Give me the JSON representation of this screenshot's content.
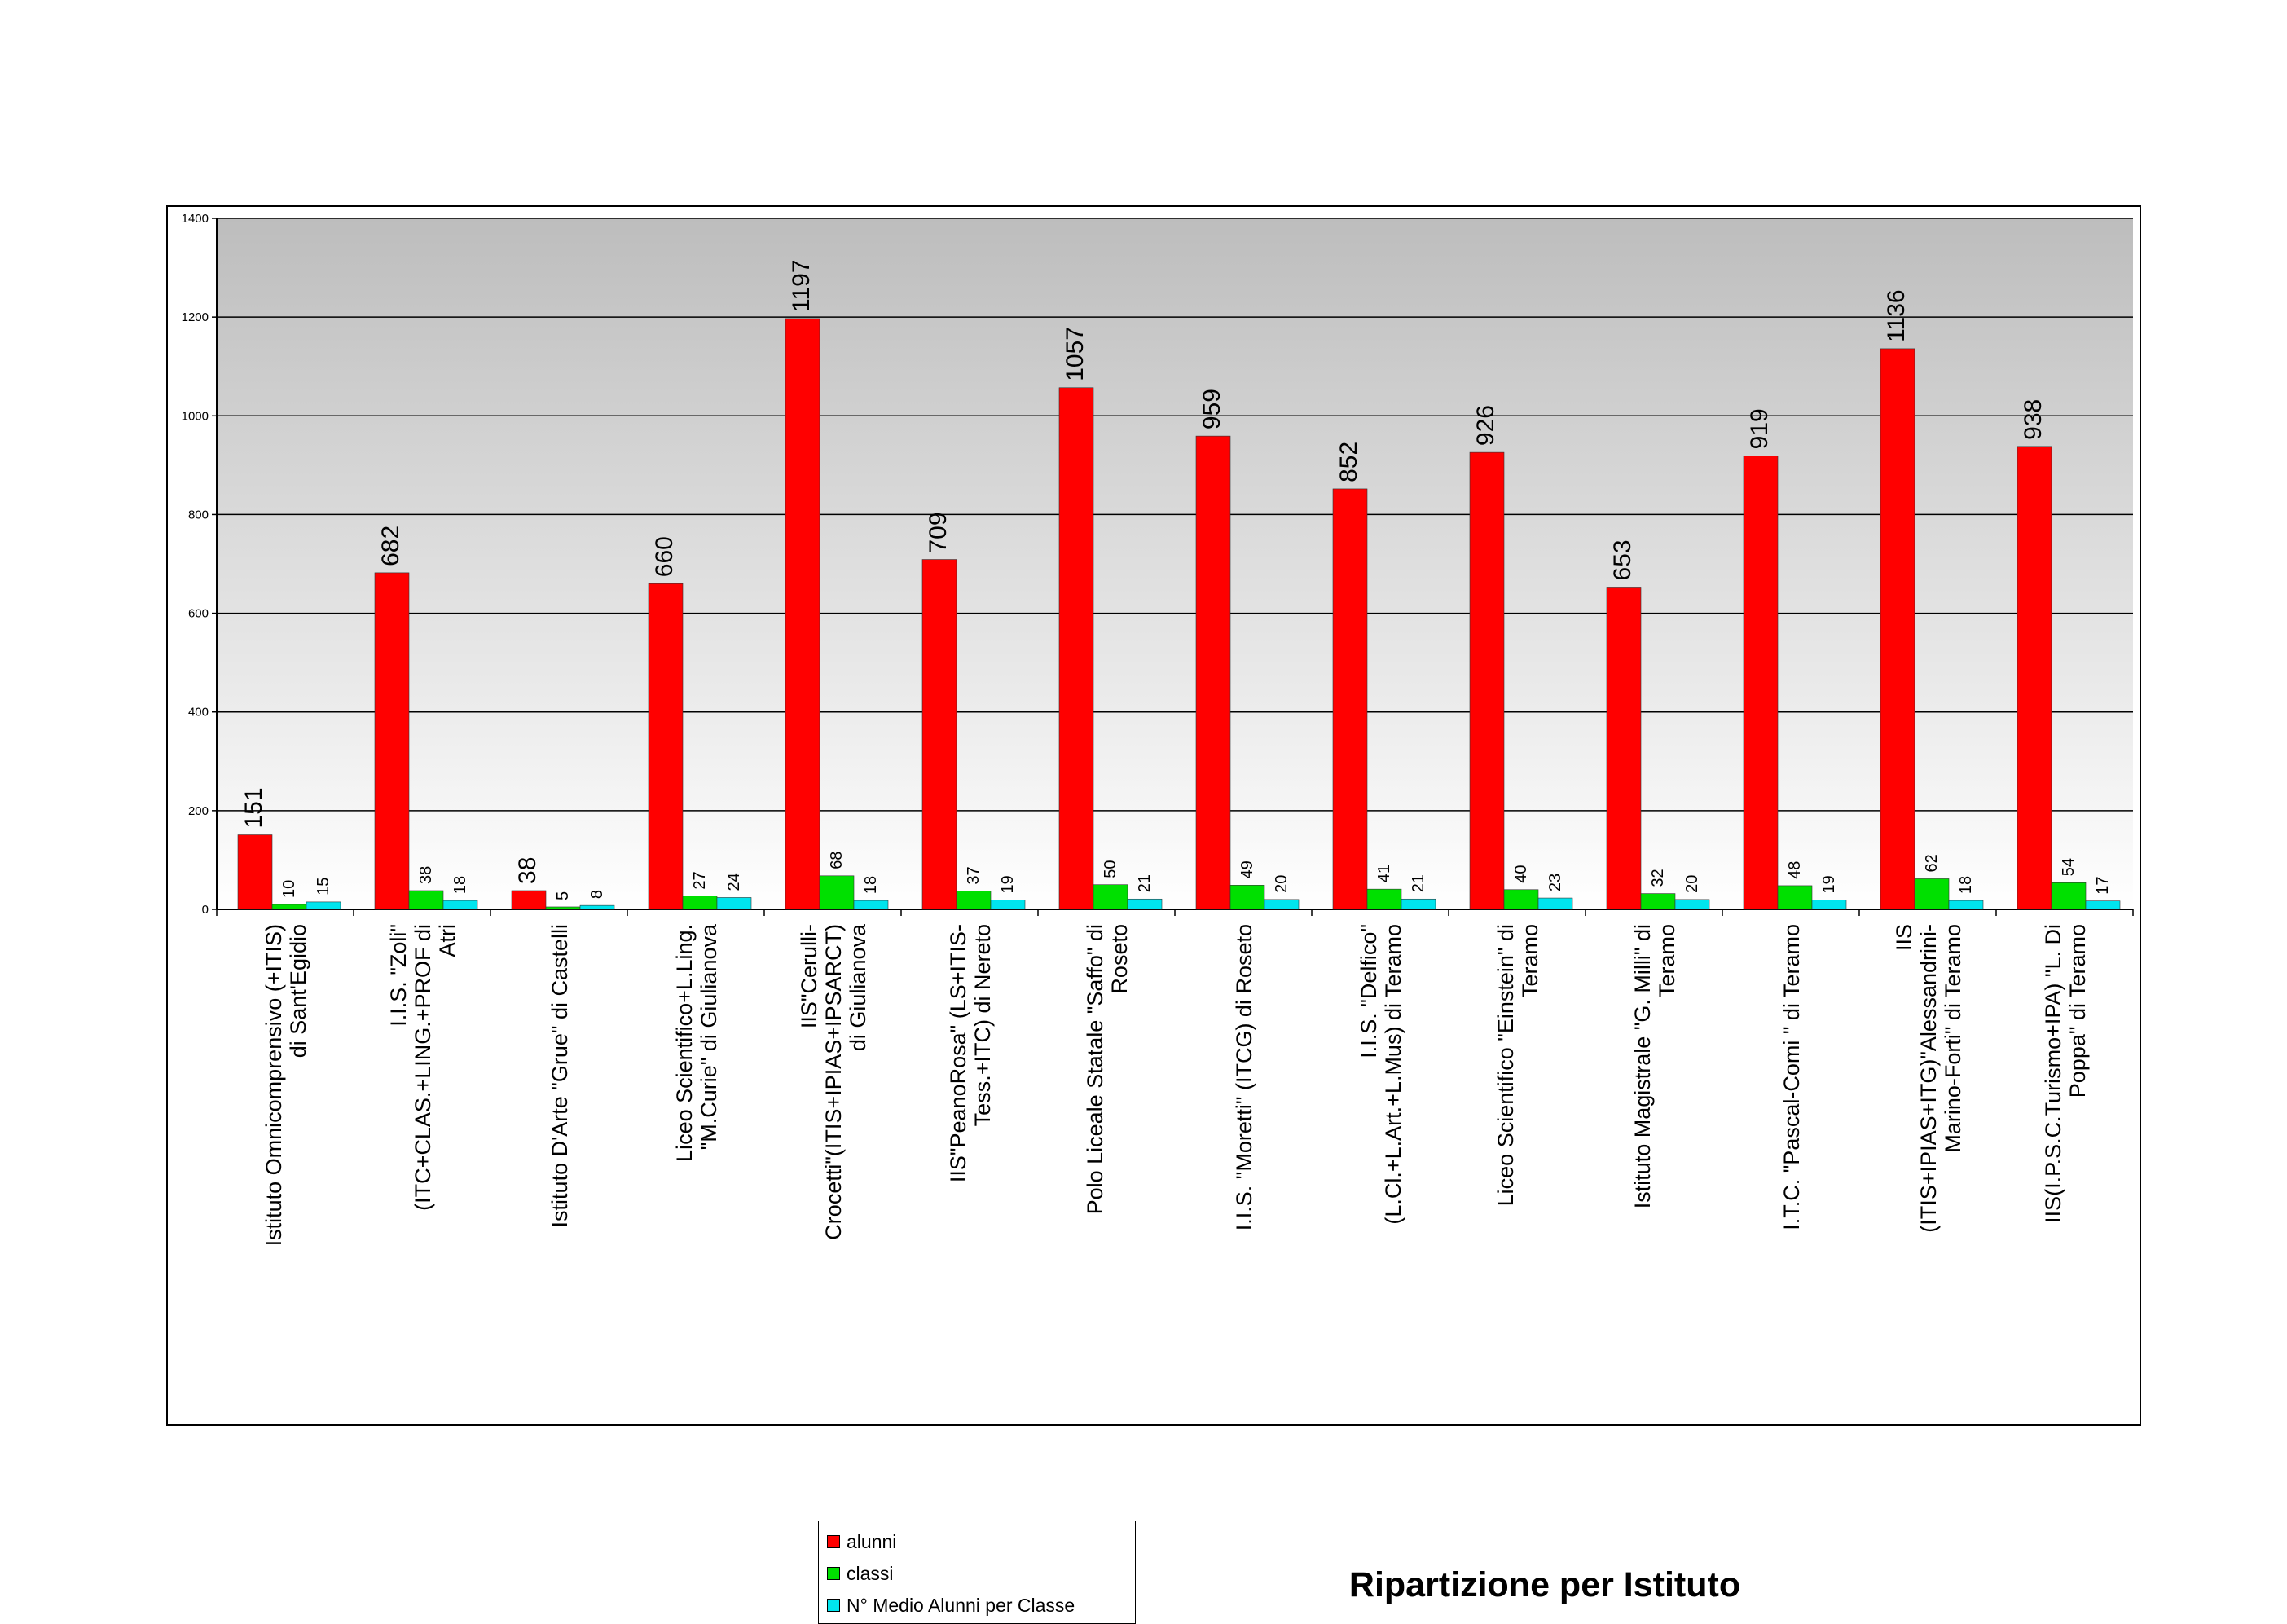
{
  "chart_data": {
    "type": "bar",
    "title": "Ripartizione per Istituto",
    "xlabel": "",
    "ylabel": "",
    "ylim": [
      0,
      1400
    ],
    "yticks": [
      0,
      200,
      400,
      600,
      800,
      1000,
      1200,
      1400
    ],
    "grid": true,
    "legend_position": "bottom-left",
    "categories": [
      "Istituto Omnicomprensivo (+ITIS) di Sant'Egidio",
      "I.I.S. \"Zoli\" (ITC+CLAS.+LING.+PROF di Atri",
      "Istituto D'Arte \"Grue\" di Castelli",
      "Liceo Scientifico+L.Ling. \"M.Curie\" di Giulianova",
      "IIS\"Cerulli-Crocetti\"(ITIS+IPIAS+IPSARCT) di Giulianova",
      "IIS\"PeanoRosa\" (LS+ITIS-Tess.+ITC) di Nereto",
      "Polo Liceale Statale \"Saffo\" di Roseto",
      "I.I.S. \"Moretti\" (ITCG) di Roseto",
      "I.I.S. \"Delfico\" (L.Cl.+L.Art.+L.Mus) di Teramo",
      "Liceo Scientifico \"Einstein\" di Teramo",
      "Istituto Magistrale \"G. Milli\" di Teramo",
      "I.T.C. \"Pascal-Comi \" di Teramo",
      "IIS (ITIS+IPIAS+ITG)\"Alessandrini-Marino-Forti\" di Teramo",
      "IIS(I.P.S.C.Turismo+IPA) \"L. Di Poppa\" di Teramo"
    ],
    "category_label_lines": [
      [
        "Istituto Omnicomprensivo (+ITIS)",
        "di Sant'Egidio"
      ],
      [
        "I.I.S. \"Zoli\"",
        "(ITC+CLAS.+LING.+PROF di",
        "Atri"
      ],
      [
        "Istituto D'Arte \"Grue\" di Castelli"
      ],
      [
        "Liceo Scientifico+L.Ling.",
        "\"M.Curie\" di Giulianova"
      ],
      [
        "IIS\"Cerulli-",
        "Crocetti\"(ITIS+IPIAS+IPSARCT)",
        "di Giulianova"
      ],
      [
        "IIS\"PeanoRosa\" (LS+ITIS-",
        "Tess.+ITC) di Nereto"
      ],
      [
        "Polo Liceale Statale \"Saffo\" di",
        "Roseto"
      ],
      [
        "I.I.S. \"Moretti\" (ITCG) di Roseto"
      ],
      [
        "I.I.S. \"Delfico\"",
        "(L.Cl.+L.Art.+L.Mus) di Teramo"
      ],
      [
        "Liceo Scientifico \"Einstein\" di",
        "Teramo"
      ],
      [
        "Istituto Magistrale \"G. Milli\" di",
        "Teramo"
      ],
      [
        "I.T.C. \"Pascal-Comi \" di Teramo"
      ],
      [
        "IIS",
        "(ITIS+IPIAS+ITG)\"Alessandrini-",
        "Marino-Forti\" di Teramo"
      ],
      [
        "IIS(I.P.S.C.Turismo+IPA) \"L. Di",
        "Poppa\" di Teramo"
      ]
    ],
    "series": [
      {
        "name": "alunni",
        "color": "#ff0000",
        "values": [
          151,
          682,
          38,
          660,
          1197,
          709,
          1057,
          959,
          852,
          926,
          653,
          919,
          1136,
          938
        ]
      },
      {
        "name": "classi",
        "color": "#00e000",
        "values": [
          10,
          38,
          5,
          27,
          68,
          37,
          50,
          49,
          41,
          40,
          32,
          48,
          62,
          54
        ]
      },
      {
        "name": "N° Medio Alunni per Classe",
        "color": "#00e5ee",
        "values": [
          15,
          18,
          8,
          24,
          18,
          19,
          21,
          20,
          21,
          23,
          20,
          19,
          18,
          17
        ]
      }
    ]
  }
}
